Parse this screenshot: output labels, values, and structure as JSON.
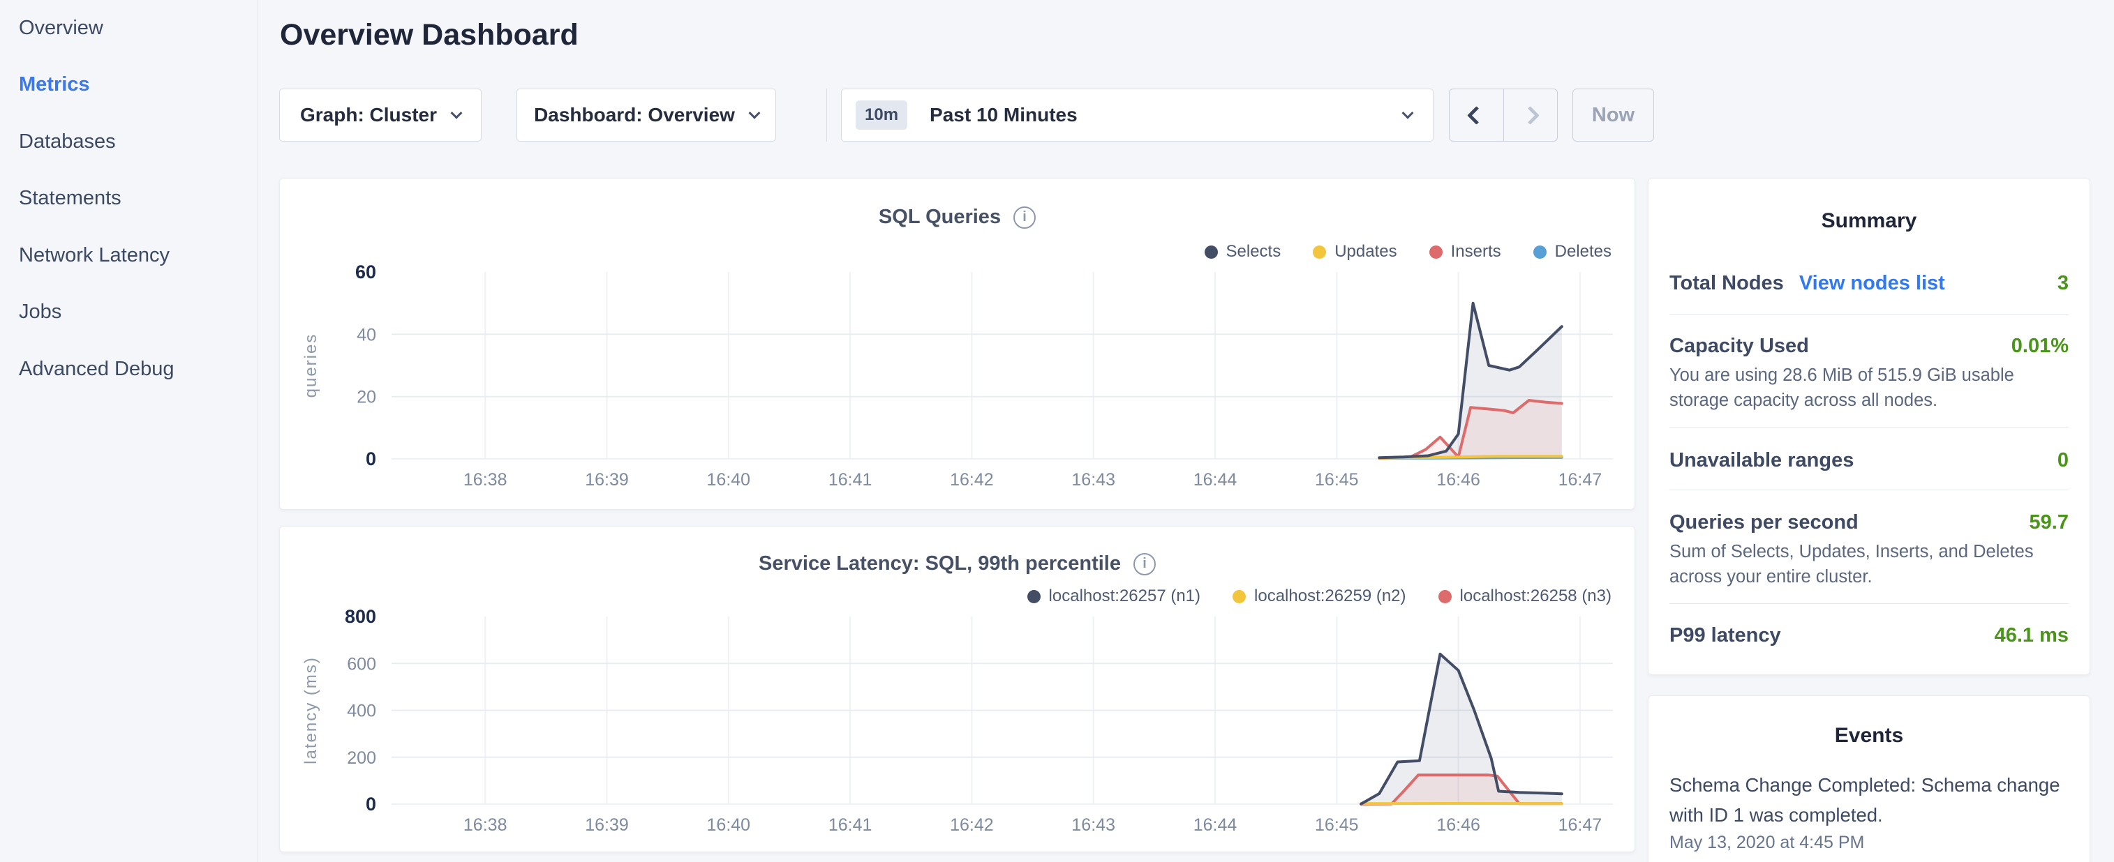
{
  "sidebar": {
    "items": [
      {
        "label": "Overview",
        "active": false
      },
      {
        "label": "Metrics",
        "active": true
      },
      {
        "label": "Databases",
        "active": false
      },
      {
        "label": "Statements",
        "active": false
      },
      {
        "label": "Network Latency",
        "active": false
      },
      {
        "label": "Jobs",
        "active": false
      },
      {
        "label": "Advanced Debug",
        "active": false
      }
    ]
  },
  "header": {
    "title": "Overview Dashboard"
  },
  "toolbar": {
    "graph_dropdown": "Graph: Cluster",
    "dashboard_dropdown": "Dashboard: Overview",
    "range_badge": "10m",
    "range_label": "Past 10 Minutes",
    "now_label": "Now"
  },
  "chart_data": [
    {
      "type": "area",
      "title": "SQL Queries",
      "ylabel": "queries",
      "ylim": [
        0,
        60
      ],
      "yticks": [
        0,
        20,
        40,
        60
      ],
      "x_domain": [
        37.23,
        47.27
      ],
      "xtick_minutes": [
        38,
        39,
        40,
        41,
        42,
        43,
        44,
        45,
        46,
        47
      ],
      "xticks": [
        "16:38",
        "16:39",
        "16:40",
        "16:41",
        "16:42",
        "16:43",
        "16:44",
        "16:45",
        "16:46",
        "16:47"
      ],
      "grid": true,
      "legend_position": "top-right",
      "series": [
        {
          "name": "Selects",
          "color": "#434e66",
          "fill": "rgba(71,81,104,0.10)",
          "points": [
            [
              45.35,
              0.4
            ],
            [
              45.55,
              0.6
            ],
            [
              45.75,
              1
            ],
            [
              45.9,
              2.5
            ],
            [
              46.0,
              8
            ],
            [
              46.12,
              50
            ],
            [
              46.25,
              30
            ],
            [
              46.42,
              28.5
            ],
            [
              46.5,
              29.5
            ],
            [
              46.65,
              35
            ],
            [
              46.85,
              42.5
            ]
          ]
        },
        {
          "name": "Updates",
          "color": "#f2c53d",
          "fill": null,
          "points": [
            [
              45.35,
              0.3
            ],
            [
              45.85,
              0.5
            ],
            [
              46.3,
              0.8
            ],
            [
              46.85,
              0.8
            ]
          ]
        },
        {
          "name": "Inserts",
          "color": "#dd6b6b",
          "fill": "rgba(221,107,107,0.10)",
          "points": [
            [
              45.35,
              0.2
            ],
            [
              45.6,
              0.5
            ],
            [
              45.73,
              3
            ],
            [
              45.85,
              7
            ],
            [
              46.0,
              0.6
            ],
            [
              46.1,
              16.5
            ],
            [
              46.25,
              16
            ],
            [
              46.38,
              15.5
            ],
            [
              46.45,
              14.8
            ],
            [
              46.58,
              18.8
            ],
            [
              46.72,
              18.2
            ],
            [
              46.85,
              17.8
            ]
          ]
        },
        {
          "name": "Deletes",
          "color": "#57a0d6",
          "fill": null,
          "points": [
            [
              45.35,
              0.2
            ],
            [
              45.85,
              0.3
            ],
            [
              46.3,
              0.4
            ],
            [
              46.85,
              0.5
            ]
          ]
        }
      ]
    },
    {
      "type": "area",
      "title": "Service Latency: SQL, 99th percentile",
      "ylabel": "latency (ms)",
      "ylim": [
        0,
        800
      ],
      "yticks": [
        0,
        200,
        400,
        600,
        800
      ],
      "x_domain": [
        37.23,
        47.27
      ],
      "xtick_minutes": [
        38,
        39,
        40,
        41,
        42,
        43,
        44,
        45,
        46,
        47
      ],
      "xticks": [
        "16:38",
        "16:39",
        "16:40",
        "16:41",
        "16:42",
        "16:43",
        "16:44",
        "16:45",
        "16:46",
        "16:47"
      ],
      "grid": true,
      "legend_position": "top-right",
      "series": [
        {
          "name": "localhost:26257 (n1)",
          "color": "#434e66",
          "fill": "rgba(71,81,104,0.10)",
          "points": [
            [
              45.2,
              1
            ],
            [
              45.35,
              45
            ],
            [
              45.5,
              180
            ],
            [
              45.68,
              185
            ],
            [
              45.85,
              640
            ],
            [
              46.0,
              570
            ],
            [
              46.13,
              400
            ],
            [
              46.27,
              195
            ],
            [
              46.33,
              55
            ],
            [
              46.5,
              50
            ],
            [
              46.7,
              47
            ],
            [
              46.85,
              44
            ]
          ]
        },
        {
          "name": "localhost:26259 (n2)",
          "color": "#f2c53d",
          "fill": null,
          "points": [
            [
              45.2,
              2
            ],
            [
              45.9,
              3
            ],
            [
              46.85,
              2
            ]
          ]
        },
        {
          "name": "localhost:26258 (n3)",
          "color": "#dd6b6b",
          "fill": "rgba(221,107,107,0.10)",
          "points": [
            [
              45.2,
              0
            ],
            [
              45.45,
              1
            ],
            [
              45.55,
              55
            ],
            [
              45.67,
              124
            ],
            [
              46.25,
              124
            ],
            [
              46.32,
              120
            ],
            [
              46.5,
              2
            ],
            [
              46.85,
              2
            ]
          ]
        }
      ]
    }
  ],
  "summary": {
    "title": "Summary",
    "rows": [
      {
        "label": "Total Nodes",
        "link": "View nodes list",
        "value": "3"
      },
      {
        "label": "Capacity Used",
        "value": "0.01%",
        "desc": "You are using 28.6 MiB of 515.9 GiB usable storage capacity across all nodes."
      },
      {
        "label": "Unavailable ranges",
        "value": "0"
      },
      {
        "label": "Queries per second",
        "value": "59.7",
        "desc": "Sum of Selects, Updates, Inserts, and Deletes across your entire cluster."
      },
      {
        "label": "P99 latency",
        "value": "46.1 ms"
      }
    ]
  },
  "events": {
    "title": "Events",
    "items": [
      {
        "text": "Schema Change Completed: Schema change with ID 1 was completed.",
        "time": "May 13, 2020 at 4:45 PM"
      }
    ]
  },
  "colors": {
    "accent_blue": "#3b78e8",
    "link_blue": "#3279ef",
    "value_green": "#4a9419",
    "series_navy": "#434e66",
    "series_yellow": "#f2c53d",
    "series_red": "#dd6b6b",
    "series_blue": "#57a0d6",
    "page_bg": "#f4f6fa"
  }
}
